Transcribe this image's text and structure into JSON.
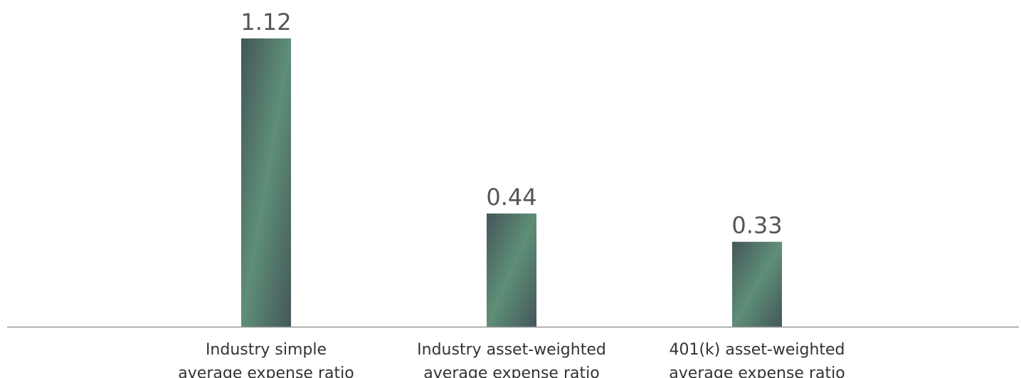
{
  "chart_data": {
    "type": "bar",
    "categories": [
      [
        "Industry simple",
        "average expense ratio"
      ],
      [
        "Industry asset-weighted",
        "average expense ratio"
      ],
      [
        "401(k) asset-weighted",
        "average expense ratio"
      ]
    ],
    "values": [
      1.12,
      0.44,
      0.33
    ],
    "data_labels": [
      "1.12",
      "0.44",
      "0.33"
    ],
    "title": "",
    "xlabel": "",
    "ylabel": "",
    "ylim": [
      0,
      1.12
    ],
    "grid": false,
    "legend": "none",
    "colors": {
      "bar_light": "#5e8f77",
      "bar_dark": "#44565a",
      "axis": "#999999"
    }
  }
}
